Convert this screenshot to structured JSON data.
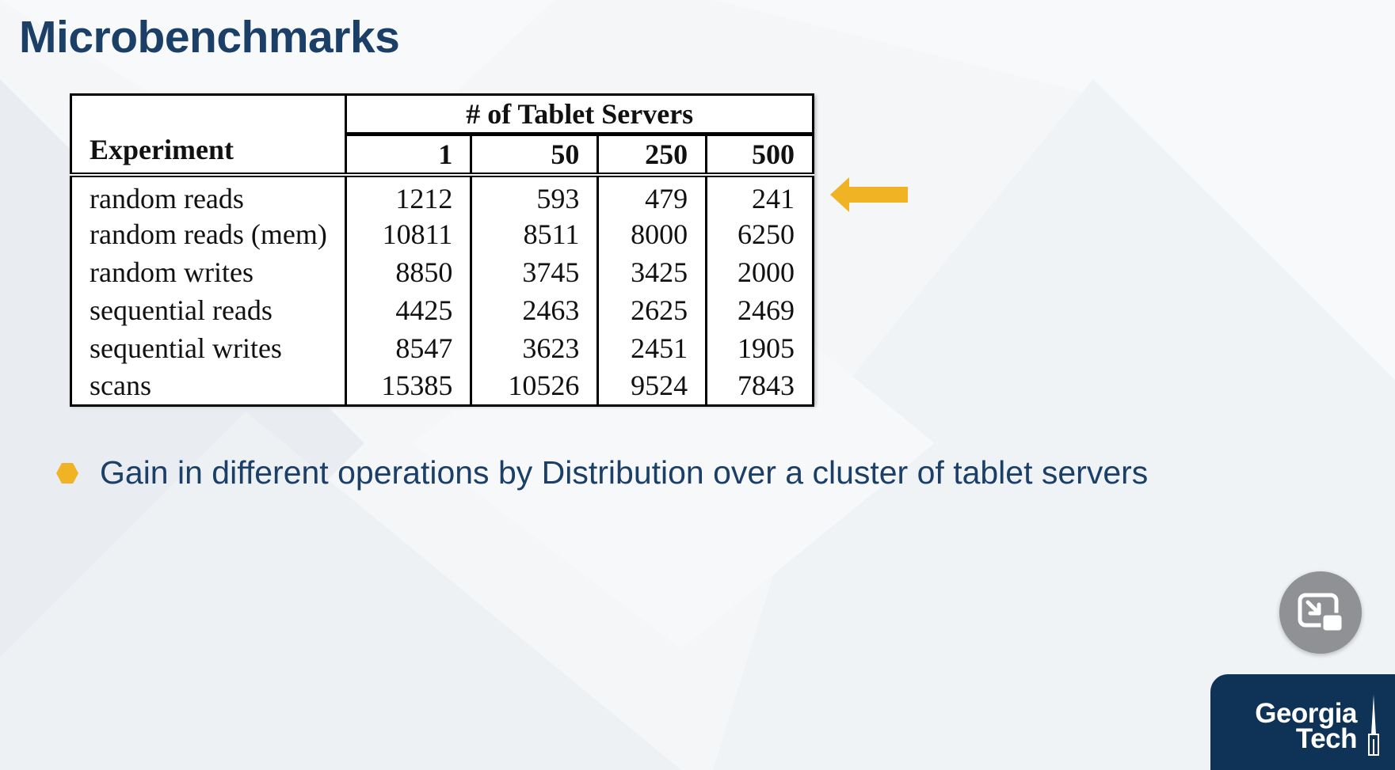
{
  "slide": {
    "title": "Microbenchmarks"
  },
  "table": {
    "group_header": "# of Tablet Servers",
    "experiment_header": "Experiment",
    "columns": [
      "1",
      "50",
      "250",
      "500"
    ],
    "rows": [
      {
        "name": "random reads",
        "values": [
          "1212",
          "593",
          "479",
          "241"
        ]
      },
      {
        "name": "random reads (mem)",
        "values": [
          "10811",
          "8511",
          "8000",
          "6250"
        ]
      },
      {
        "name": "random writes",
        "values": [
          "8850",
          "3745",
          "3425",
          "2000"
        ]
      },
      {
        "name": "sequential reads",
        "values": [
          "4425",
          "2463",
          "2625",
          "2469"
        ]
      },
      {
        "name": "sequential writes",
        "values": [
          "8547",
          "3623",
          "2451",
          "1905"
        ]
      },
      {
        "name": "scans",
        "values": [
          "15385",
          "10526",
          "9524",
          "7843"
        ]
      }
    ]
  },
  "bullet": {
    "text": "Gain in different operations by Distribution over a cluster of tablet servers"
  },
  "logo": {
    "line1": "Georgia",
    "line2": "Tech"
  },
  "colors": {
    "title": "#1b3f66",
    "accent": "#f0b323",
    "logo_bg": "#0f3357"
  },
  "icons": {
    "arrow": "left-arrow-icon",
    "bullet": "hexagon-bullet-icon",
    "pip": "exit-picture-in-picture-icon",
    "tower": "tech-tower-icon"
  }
}
